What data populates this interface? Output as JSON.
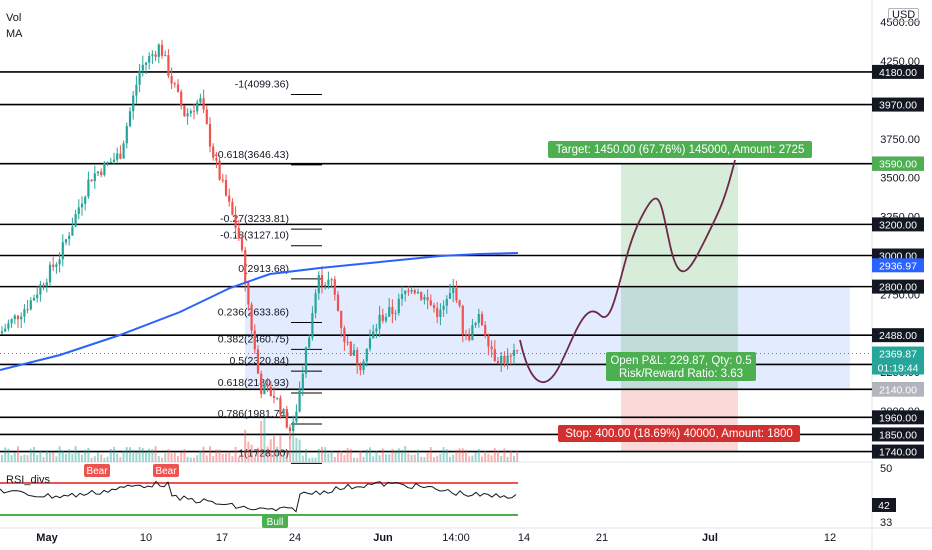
{
  "header": {
    "vol_label": "Vol",
    "ma_label": "MA",
    "currency": "USD"
  },
  "rsi": {
    "label": "RSI_divs",
    "bear_labels": [
      "Bear",
      "Bear"
    ],
    "bull_label": "Bull",
    "value": "42",
    "axis_ticks": [
      "50",
      "33"
    ]
  },
  "colors": {
    "up": "#26a69a",
    "down": "#ef5350",
    "ma": "#2962ff",
    "target": "#4caf50",
    "stop": "#ef5350",
    "zone": "#2962ff",
    "projection": "#6b2a4a"
  },
  "chart_data": {
    "type": "candlestick",
    "price_axis": {
      "ticks": [
        "4500.00",
        "4250.00",
        "3750.00",
        "3500.00",
        "3250.00",
        "3000.00",
        "2750.00",
        "2500.00",
        "2250.00",
        "2000.00",
        "1750.00"
      ],
      "range": [
        1680,
        4600
      ]
    },
    "time_axis": {
      "labels": [
        "May",
        "10",
        "17",
        "24",
        "Jun",
        "14:00",
        "14",
        "21",
        "Jul",
        "12"
      ]
    },
    "horizontal_levels": [
      {
        "price": 4180,
        "label": "4180.00"
      },
      {
        "price": 3970,
        "label": "3970.00"
      },
      {
        "price": 3590,
        "label": "3590.00"
      },
      {
        "price": 3200,
        "label": "3200.00"
      },
      {
        "price": 3000,
        "label": "3000.00"
      },
      {
        "price": 2800,
        "label": "2800.00"
      },
      {
        "price": 2488,
        "label": "2488.00"
      },
      {
        "price": 2300,
        "label": "2300.00"
      },
      {
        "price": 2140,
        "label": "2140.00"
      },
      {
        "price": 1960,
        "label": "1960.00"
      },
      {
        "price": 1850,
        "label": "1850.00"
      },
      {
        "price": 1740,
        "label": "1740.00"
      }
    ],
    "price_badges": [
      {
        "price": 3590,
        "label": "3590.00",
        "color": "#4caf50"
      },
      {
        "price": 2937,
        "label": "2936.97",
        "color": "#2962ff"
      },
      {
        "price": 2370,
        "label": "2369.87",
        "color": "#26a69a"
      },
      {
        "price": 2140,
        "label": "2140.00",
        "color": "#b2b5be"
      }
    ],
    "countdown": "01:19:44",
    "fibonacci": [
      {
        "text": "-1(4099.36)",
        "price": 4099.36
      },
      {
        "text": "-0.618(3646.43)",
        "price": 3646.43
      },
      {
        "text": "-0.27(3233.81)",
        "price": 3233.81
      },
      {
        "text": "-0.18(3127.10)",
        "price": 3127.1
      },
      {
        "text": "0(2913.68)",
        "price": 2913.68
      },
      {
        "text": "0.236(2633.86)",
        "price": 2633.86
      },
      {
        "text": "0.382(2460.75)",
        "price": 2460.75
      },
      {
        "text": "0.5(2320.84)",
        "price": 2320.84
      },
      {
        "text": "0.618(2180.93)",
        "price": 2180.93
      },
      {
        "text": "0.786(1981.74)",
        "price": 1981.74
      },
      {
        "text": "1(1728.00)",
        "price": 1728.0
      }
    ],
    "position": {
      "target_label": "Target: 1450.00 (67.76%) 145000, Amount: 2725",
      "stop_label": "Stop: 400.00 (18.69%) 40000, Amount: 1800",
      "pnl_label": "Open P&L: 229.87, Qty: 0.5",
      "rr_label": "Risk/Reward Ratio: 3.63",
      "entry": 2140,
      "target": 3590,
      "stop": 1740
    }
  }
}
